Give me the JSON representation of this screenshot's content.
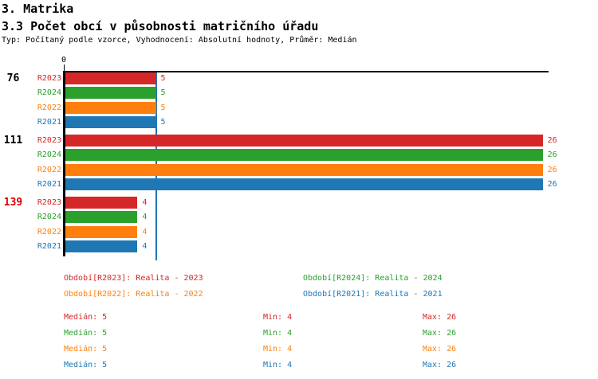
{
  "header": {
    "section_title": "3. Matrika",
    "chart_title": "3.3 Počet obcí v působnosti matričního úřadu",
    "meta": "Typ: Počítaný podle vzorce, Vyhodnocení: Absolutní hodnoty, Průměr: Medián"
  },
  "colors": {
    "R2023": "#d62728",
    "R2024": "#2ca02c",
    "R2022": "#ff7f0e",
    "R2021": "#1f77b4",
    "axis": "#000000",
    "median_line": "#1f77b4",
    "group_label": "#000000",
    "group_label_alert": "#dd0000"
  },
  "chart_data": {
    "type": "bar",
    "orientation": "horizontal",
    "title": "3.3 Počet obcí v působnosti matričního úřadu",
    "value_axis": {
      "origin_label": "0",
      "range": [
        0,
        26.3
      ],
      "gridlines": false
    },
    "median_value": 5,
    "series_order": [
      "R2023",
      "R2024",
      "R2022",
      "R2021"
    ],
    "groups": [
      {
        "label": "76",
        "alert": false,
        "rows": [
          {
            "series": "R2023",
            "value": 5
          },
          {
            "series": "R2024",
            "value": 5
          },
          {
            "series": "R2022",
            "value": 5
          },
          {
            "series": "R2021",
            "value": 5
          }
        ]
      },
      {
        "label": "111",
        "alert": false,
        "rows": [
          {
            "series": "R2023",
            "value": 26
          },
          {
            "series": "R2024",
            "value": 26
          },
          {
            "series": "R2022",
            "value": 26
          },
          {
            "series": "R2021",
            "value": 26
          }
        ]
      },
      {
        "label": "139",
        "alert": true,
        "rows": [
          {
            "series": "R2023",
            "value": 4
          },
          {
            "series": "R2024",
            "value": 4
          },
          {
            "series": "R2022",
            "value": 4
          },
          {
            "series": "R2021",
            "value": 4
          }
        ]
      }
    ]
  },
  "legend": {
    "items": [
      {
        "series": "R2023",
        "text": "Období[R2023]: Realita - 2023"
      },
      {
        "series": "R2024",
        "text": "Období[R2024]: Realita - 2024"
      },
      {
        "series": "R2022",
        "text": "Období[R2022]: Realita - 2022"
      },
      {
        "series": "R2021",
        "text": "Období[R2021]: Realita - 2021"
      }
    ]
  },
  "stats": {
    "labels": {
      "median": "Medián",
      "min": "Min",
      "max": "Max"
    },
    "rows": [
      {
        "series": "R2023",
        "median": 5,
        "min": 4,
        "max": 26
      },
      {
        "series": "R2024",
        "median": 5,
        "min": 4,
        "max": 26
      },
      {
        "series": "R2022",
        "median": 5,
        "min": 4,
        "max": 26
      },
      {
        "series": "R2021",
        "median": 5,
        "min": 4,
        "max": 26
      }
    ]
  }
}
